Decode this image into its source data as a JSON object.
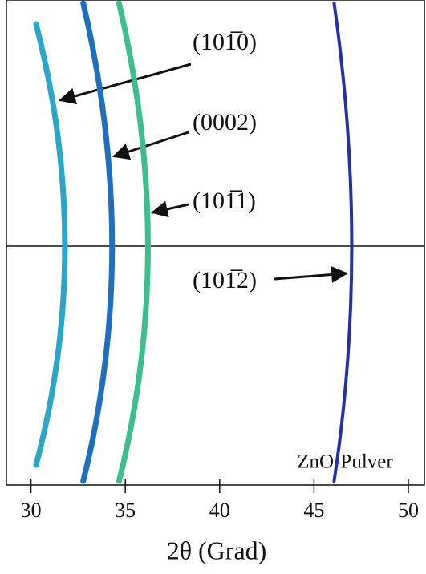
{
  "chart_data": {
    "type": "diffraction",
    "x_label": "2θ (Grad)",
    "annotation": "ZnO-Pulver",
    "xlim": [
      28.7,
      50.85
    ],
    "xticks": [
      30,
      35,
      40,
      45,
      50
    ],
    "series": [
      {
        "name": "(101̅0)",
        "color": "#2aa6c8",
        "values": [
          31.8
        ]
      },
      {
        "name": "(0002)",
        "color": "#1f6fc0",
        "values": [
          34.3
        ]
      },
      {
        "name": "(101̅1)",
        "color": "#3cbf8c",
        "values": [
          36.2
        ]
      },
      {
        "name": "(101̅2)",
        "color": "#2430a8",
        "values": [
          47.0
        ]
      }
    ]
  }
}
